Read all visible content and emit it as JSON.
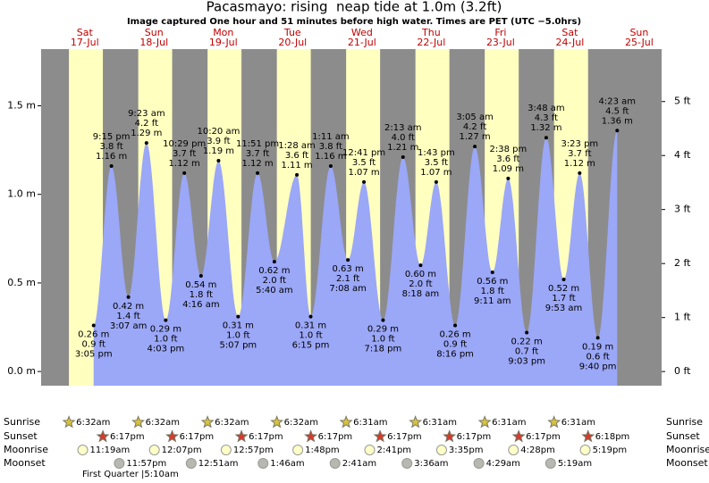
{
  "chart_data": {
    "type": "tide",
    "title": "Pacasmayo: rising  neap tide at 1.0m (3.2ft)",
    "subtitle": "Image captured One hour and 51 minutes before high water. Times are PET (UTC −5.0hrs)",
    "days": [
      "Sat",
      "Sun",
      "Mon",
      "Tue",
      "Wed",
      "Thu",
      "Fri",
      "Sat",
      "Sun"
    ],
    "dates": [
      "17-Jul",
      "18-Jul",
      "19-Jul",
      "20-Jul",
      "21-Jul",
      "22-Jul",
      "23-Jul",
      "24-Jul",
      "25-Jul"
    ],
    "tides": {
      "values": [
        0.26,
        1.16,
        0.42,
        1.29,
        0.29,
        1.12,
        0.54,
        1.19,
        0.31,
        1.12,
        0.62,
        1.11,
        0.31,
        1.16,
        0.63,
        1.07,
        0.29,
        1.21,
        0.6,
        1.07,
        0.26,
        1.27,
        0.56,
        1.09,
        0.22,
        1.32,
        0.52,
        1.12,
        0.19,
        1.36
      ],
      "value_labels": [
        "0.26 m",
        "1.16 m",
        "0.42 m",
        "1.29 m",
        "0.29 m",
        "1.12 m",
        "0.54 m",
        "1.19 m",
        "0.31 m",
        "1.12 m",
        "0.62 m",
        "1.11 m",
        "0.31 m",
        "1.16 m",
        "0.63 m",
        "1.07 m",
        "0.29 m",
        "1.21 m",
        "0.60 m",
        "1.07 m",
        "0.26 m",
        "1.27 m",
        "0.56 m",
        "1.09 m",
        "0.22 m",
        "1.32 m",
        "0.52 m",
        "1.12 m",
        "0.19 m",
        "1.36 m"
      ],
      "ft_labels": [
        "0.9 ft",
        "3.8 ft",
        "1.4 ft",
        "4.2 ft",
        "1.0 ft",
        "3.7 ft",
        "1.8 ft",
        "3.9 ft",
        "1.0 ft",
        "3.7 ft",
        "2.0 ft",
        "3.6 ft",
        "1.0 ft",
        "3.8 ft",
        "2.1 ft",
        "3.5 ft",
        "1.0 ft",
        "4.0 ft",
        "2.0 ft",
        "3.5 ft",
        "0.9 ft",
        "4.2 ft",
        "1.8 ft",
        "3.6 ft",
        "0.7 ft",
        "4.3 ft",
        "1.7 ft",
        "3.7 ft",
        "0.6 ft",
        "4.5 ft"
      ],
      "times": [
        "3:05 pm",
        "9:15 pm",
        "3:07 am",
        "9:23 am",
        "4:03 pm",
        "10:29 pm",
        "4:16 am",
        "10:20 am",
        "5:07 pm",
        "11:51 pm",
        "5:40 am",
        "1:28 am",
        "6:15 pm",
        "1:11 am",
        "7:08 am",
        "12:41 pm",
        "7:18 pm",
        "2:13 am",
        "8:18 am",
        "1:43 pm",
        "8:16 pm",
        "3:05 am",
        "9:11 am",
        "2:38 pm",
        "9:03 pm",
        "3:48 am",
        "9:53 am",
        "3:23 pm",
        "9:40 pm",
        "4:23 am"
      ],
      "color": "#9ba7f7"
    },
    "ylim": [
      -0.08,
      1.82
    ],
    "yticks": [
      {
        "value": 0,
        "label": "0.0 m"
      },
      {
        "value": 0.5,
        "label": "0.5 m"
      },
      {
        "value": 1,
        "label": "1.0 m"
      },
      {
        "value": 1.5,
        "label": "1.5 m"
      }
    ],
    "y2lim": [
      -0.262,
      5.971
    ],
    "y2ticks": [
      {
        "value": 0,
        "label": "0 ft"
      },
      {
        "value": 1,
        "label": "1 ft"
      },
      {
        "value": 2,
        "label": "2 ft"
      },
      {
        "value": 3,
        "label": "3 ft"
      },
      {
        "value": 4,
        "label": "4 ft"
      },
      {
        "value": 5,
        "label": "5 ft"
      }
    ],
    "almanac": {
      "row_labels": [
        "Sunrise",
        "Sunset",
        "Moonrise",
        "Moonset"
      ],
      "sunrise": [
        "6:32am",
        "6:32am",
        "6:32am",
        "6:32am",
        "6:31am",
        "6:31am",
        "6:31am",
        "6:31am"
      ],
      "sunset": [
        "6:17pm",
        "6:17pm",
        "6:17pm",
        "6:17pm",
        "6:17pm",
        "6:17pm",
        "6:17pm",
        "6:18pm"
      ],
      "moonrise": [
        "11:19am",
        "12:07pm",
        "12:57pm",
        "1:48pm",
        "2:41pm",
        "3:35pm",
        "4:28pm",
        "5:19pm"
      ],
      "moonset": [
        "11:57pm",
        "12:51am",
        "1:46am",
        "2:41am",
        "3:36am",
        "4:29am",
        "5:19am"
      ],
      "moon_phase": "First Quarter |5:10am"
    }
  }
}
